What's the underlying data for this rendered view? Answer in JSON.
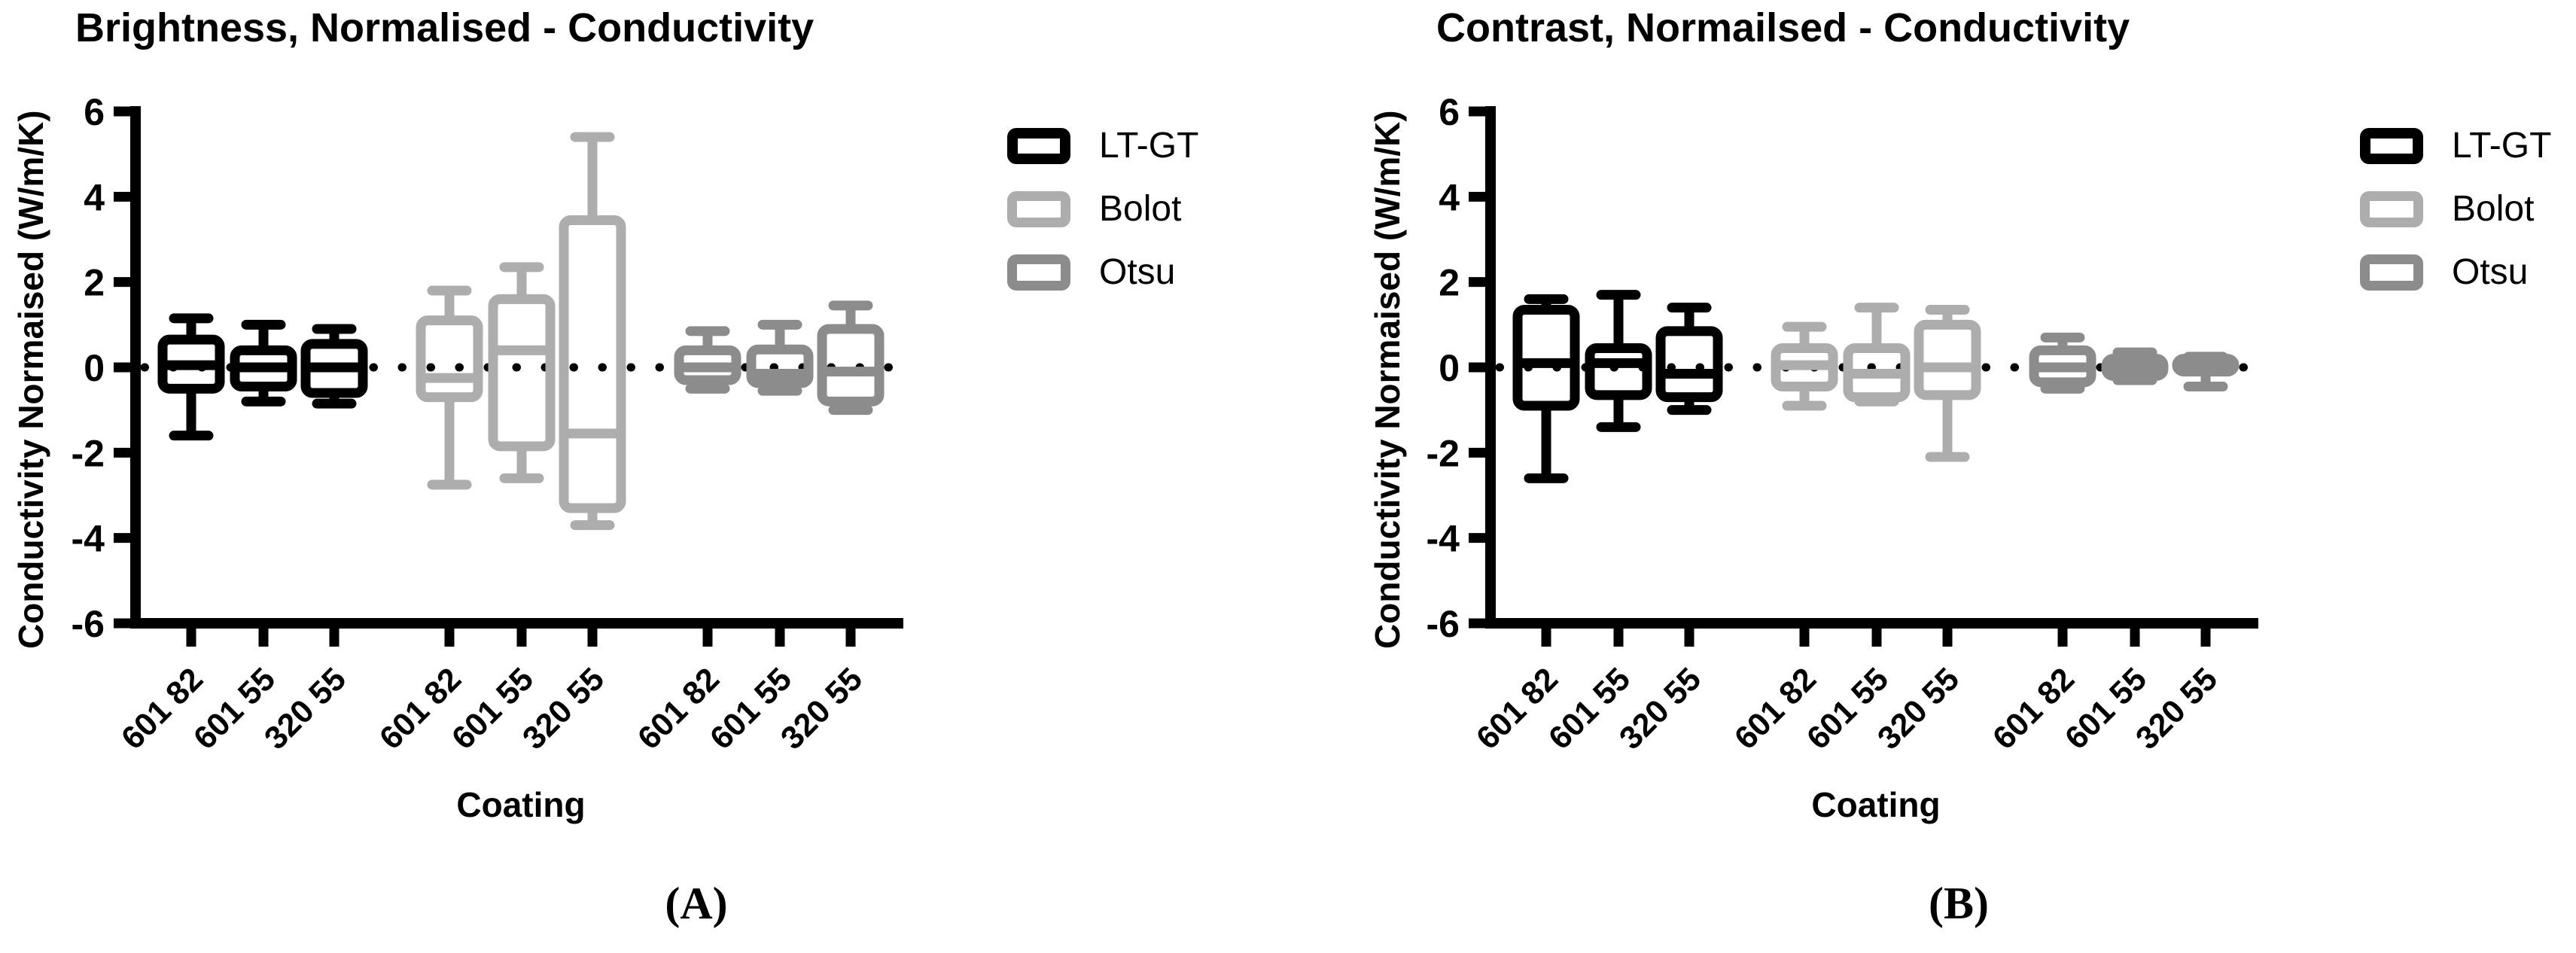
{
  "figure_caption_labels": {
    "panel_a": "(A)",
    "panel_b": "(B)"
  },
  "chart_data": [
    {
      "type": "boxplot",
      "panel_label": "(A)",
      "title": "Brightness, Normalised - Conductivity",
      "xlabel": "Coating",
      "ylabel": "Conductivity Normaised (W/m/K)",
      "ylim": [
        -6,
        6
      ],
      "yticks": [
        6,
        4,
        2,
        0,
        -2,
        -4,
        -6
      ],
      "reference_line_y": 0,
      "reference_line_style": "dotted",
      "grid": false,
      "legend_position": "right",
      "categories": [
        "601 82",
        "601 55",
        "320 55"
      ],
      "series": [
        {
          "name": "LT-GT",
          "color": "#000000",
          "boxes": [
            {
              "category": "601 82",
              "whisker_low": -1.6,
              "q1": -0.5,
              "median": 0.05,
              "q3": 0.65,
              "whisker_high": 1.15
            },
            {
              "category": "601 55",
              "whisker_low": -0.8,
              "q1": -0.45,
              "median": 0.0,
              "q3": 0.4,
              "whisker_high": 1.0
            },
            {
              "category": "320 55",
              "whisker_low": -0.85,
              "q1": -0.6,
              "median": 0.0,
              "q3": 0.55,
              "whisker_high": 0.9
            }
          ]
        },
        {
          "name": "Bolot",
          "color": "#adadad",
          "boxes": [
            {
              "category": "601 82",
              "whisker_low": -2.75,
              "q1": -0.7,
              "median": -0.25,
              "q3": 1.1,
              "whisker_high": 1.8
            },
            {
              "category": "601 55",
              "whisker_low": -2.6,
              "q1": -1.85,
              "median": 0.4,
              "q3": 1.6,
              "whisker_high": 2.35
            },
            {
              "category": "320 55",
              "whisker_low": -3.7,
              "q1": -3.3,
              "median": -1.55,
              "q3": 3.45,
              "whisker_high": 5.4
            }
          ]
        },
        {
          "name": "Otsu",
          "color": "#8c8c8c",
          "boxes": [
            {
              "category": "601 82",
              "whisker_low": -0.5,
              "q1": -0.3,
              "median": 0.0,
              "q3": 0.4,
              "whisker_high": 0.85
            },
            {
              "category": "601 55",
              "whisker_low": -0.55,
              "q1": -0.37,
              "median": -0.15,
              "q3": 0.42,
              "whisker_high": 1.0
            },
            {
              "category": "320 55",
              "whisker_low": -1.0,
              "q1": -0.8,
              "median": -0.1,
              "q3": 0.9,
              "whisker_high": 1.45
            }
          ]
        }
      ]
    },
    {
      "type": "boxplot",
      "panel_label": "(B)",
      "title": "Contrast, Normailsed - Conductivity",
      "xlabel": "Coating",
      "ylabel": "Conductivity Normaised (W/m/K)",
      "ylim": [
        -6,
        6
      ],
      "yticks": [
        6,
        4,
        2,
        0,
        -2,
        -4,
        -6
      ],
      "reference_line_y": 0,
      "reference_line_style": "dotted",
      "grid": false,
      "legend_position": "right",
      "categories": [
        "601 82",
        "601 55",
        "320 55"
      ],
      "series": [
        {
          "name": "LT-GT",
          "color": "#000000",
          "boxes": [
            {
              "category": "601 82",
              "whisker_low": -2.6,
              "q1": -0.9,
              "median": 0.1,
              "q3": 1.35,
              "whisker_high": 1.6
            },
            {
              "category": "601 55",
              "whisker_low": -1.4,
              "q1": -0.65,
              "median": 0.1,
              "q3": 0.45,
              "whisker_high": 1.7
            },
            {
              "category": "320 55",
              "whisker_low": -1.0,
              "q1": -0.7,
              "median": -0.15,
              "q3": 0.85,
              "whisker_high": 1.4
            }
          ]
        },
        {
          "name": "Bolot",
          "color": "#adadad",
          "boxes": [
            {
              "category": "601 82",
              "whisker_low": -0.9,
              "q1": -0.45,
              "median": 0.05,
              "q3": 0.45,
              "whisker_high": 0.95
            },
            {
              "category": "601 55",
              "whisker_low": -0.8,
              "q1": -0.7,
              "median": -0.15,
              "q3": 0.45,
              "whisker_high": 1.4
            },
            {
              "category": "320 55",
              "whisker_low": -2.1,
              "q1": -0.65,
              "median": 0.0,
              "q3": 1.0,
              "whisker_high": 1.35
            }
          ]
        },
        {
          "name": "Otsu",
          "color": "#8c8c8c",
          "boxes": [
            {
              "category": "601 82",
              "whisker_low": -0.5,
              "q1": -0.35,
              "median": 0.0,
              "q3": 0.4,
              "whisker_high": 0.7
            },
            {
              "category": "601 55",
              "whisker_low": -0.3,
              "q1": -0.2,
              "median": 0.0,
              "q3": 0.2,
              "whisker_high": 0.35
            },
            {
              "category": "320 55",
              "whisker_low": -0.45,
              "q1": -0.1,
              "median": 0.0,
              "q3": 0.2,
              "whisker_high": 0.25
            }
          ]
        }
      ]
    }
  ]
}
